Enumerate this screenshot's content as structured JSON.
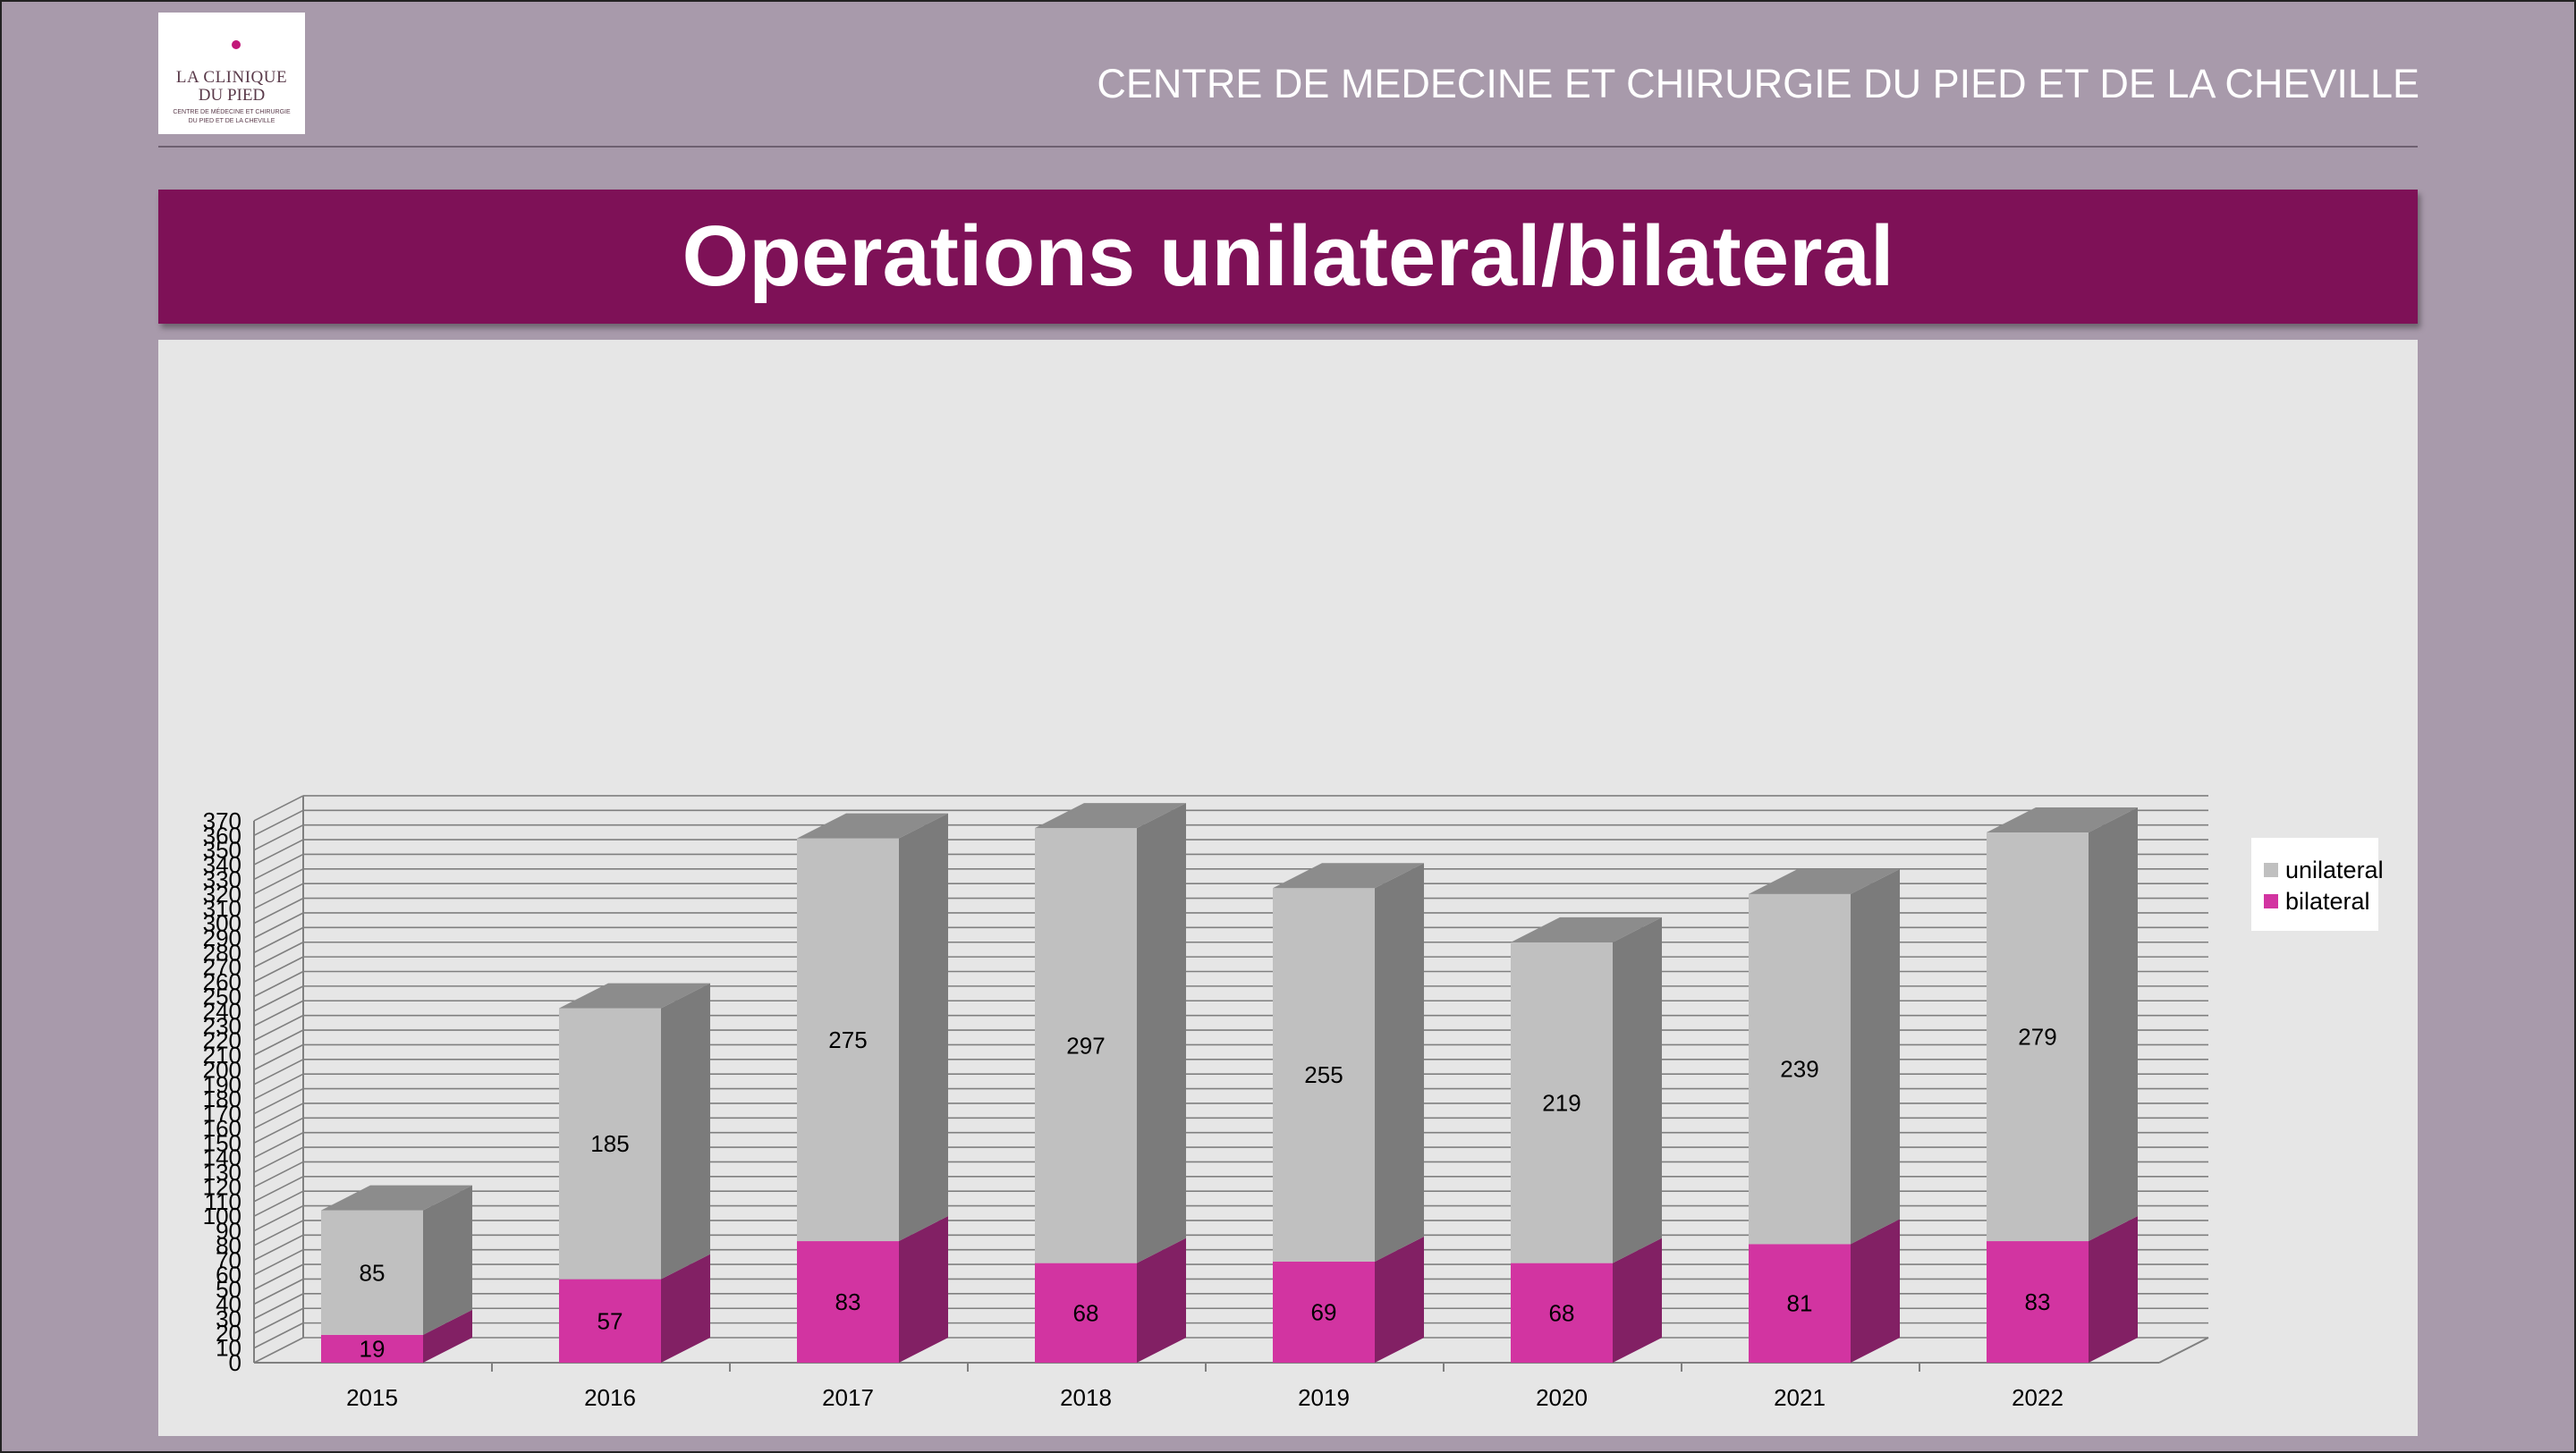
{
  "logo": {
    "line1": "LA CLINIQUE",
    "line2": "DU PIED",
    "sub1": "CENTRE DE MÉDECINE ET CHIRURGIE",
    "sub2": "DU PIED ET DE LA CHEVILLE"
  },
  "header": {
    "title": "CENTRE DE MEDECINE ET CHIRURGIE DU PIED ET DE LA CHEVILLE"
  },
  "slide_title": "Operations unilateral/bilateral",
  "colors": {
    "background": "#a89aab",
    "title_band": "#7e1157",
    "unilateral": "#c0c0c0",
    "bilateral": "#d234a1"
  },
  "chart_data": {
    "type": "bar",
    "stacked": true,
    "three_d": true,
    "categories": [
      "2015",
      "2016",
      "2017",
      "2018",
      "2019",
      "2020",
      "2021",
      "2022"
    ],
    "series": [
      {
        "name": "bilateral",
        "values": [
          19,
          57,
          83,
          68,
          69,
          68,
          81,
          83
        ]
      },
      {
        "name": "unilateral",
        "values": [
          85,
          185,
          275,
          297,
          255,
          219,
          239,
          279
        ]
      }
    ],
    "ylim": [
      0,
      370
    ],
    "ytick_step": 10,
    "grid": true,
    "legend_position": "right",
    "data_labels": true
  }
}
